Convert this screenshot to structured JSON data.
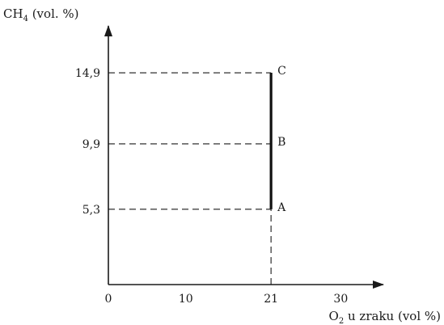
{
  "chart_data": {
    "type": "line",
    "title": "",
    "ylabel": {
      "prefix": "CH",
      "sub": "4",
      "suffix": " (vol. %)"
    },
    "xlabel": {
      "prefix": "O",
      "sub": "2",
      "suffix": " u zraku (vol %)"
    },
    "xlim": [
      0,
      35.5
    ],
    "ylim": [
      0,
      18.2
    ],
    "x_ticks": [
      {
        "value": 0,
        "label": "0"
      },
      {
        "value": 10,
        "label": "10"
      },
      {
        "value": 21,
        "label": "21"
      },
      {
        "value": 30,
        "label": "30"
      }
    ],
    "y_ticks": [
      {
        "value": 5.3,
        "label": "5,3"
      },
      {
        "value": 9.9,
        "label": "9,9"
      },
      {
        "value": 14.9,
        "label": "14,9"
      }
    ],
    "points": [
      {
        "label": "A",
        "x": 21,
        "y": 5.3
      },
      {
        "label": "B",
        "x": 21,
        "y": 9.9
      },
      {
        "label": "C",
        "x": 21,
        "y": 14.9
      }
    ],
    "segment": {
      "x": 21,
      "y_from": 5.3,
      "y_to": 14.9
    },
    "grid": false
  }
}
